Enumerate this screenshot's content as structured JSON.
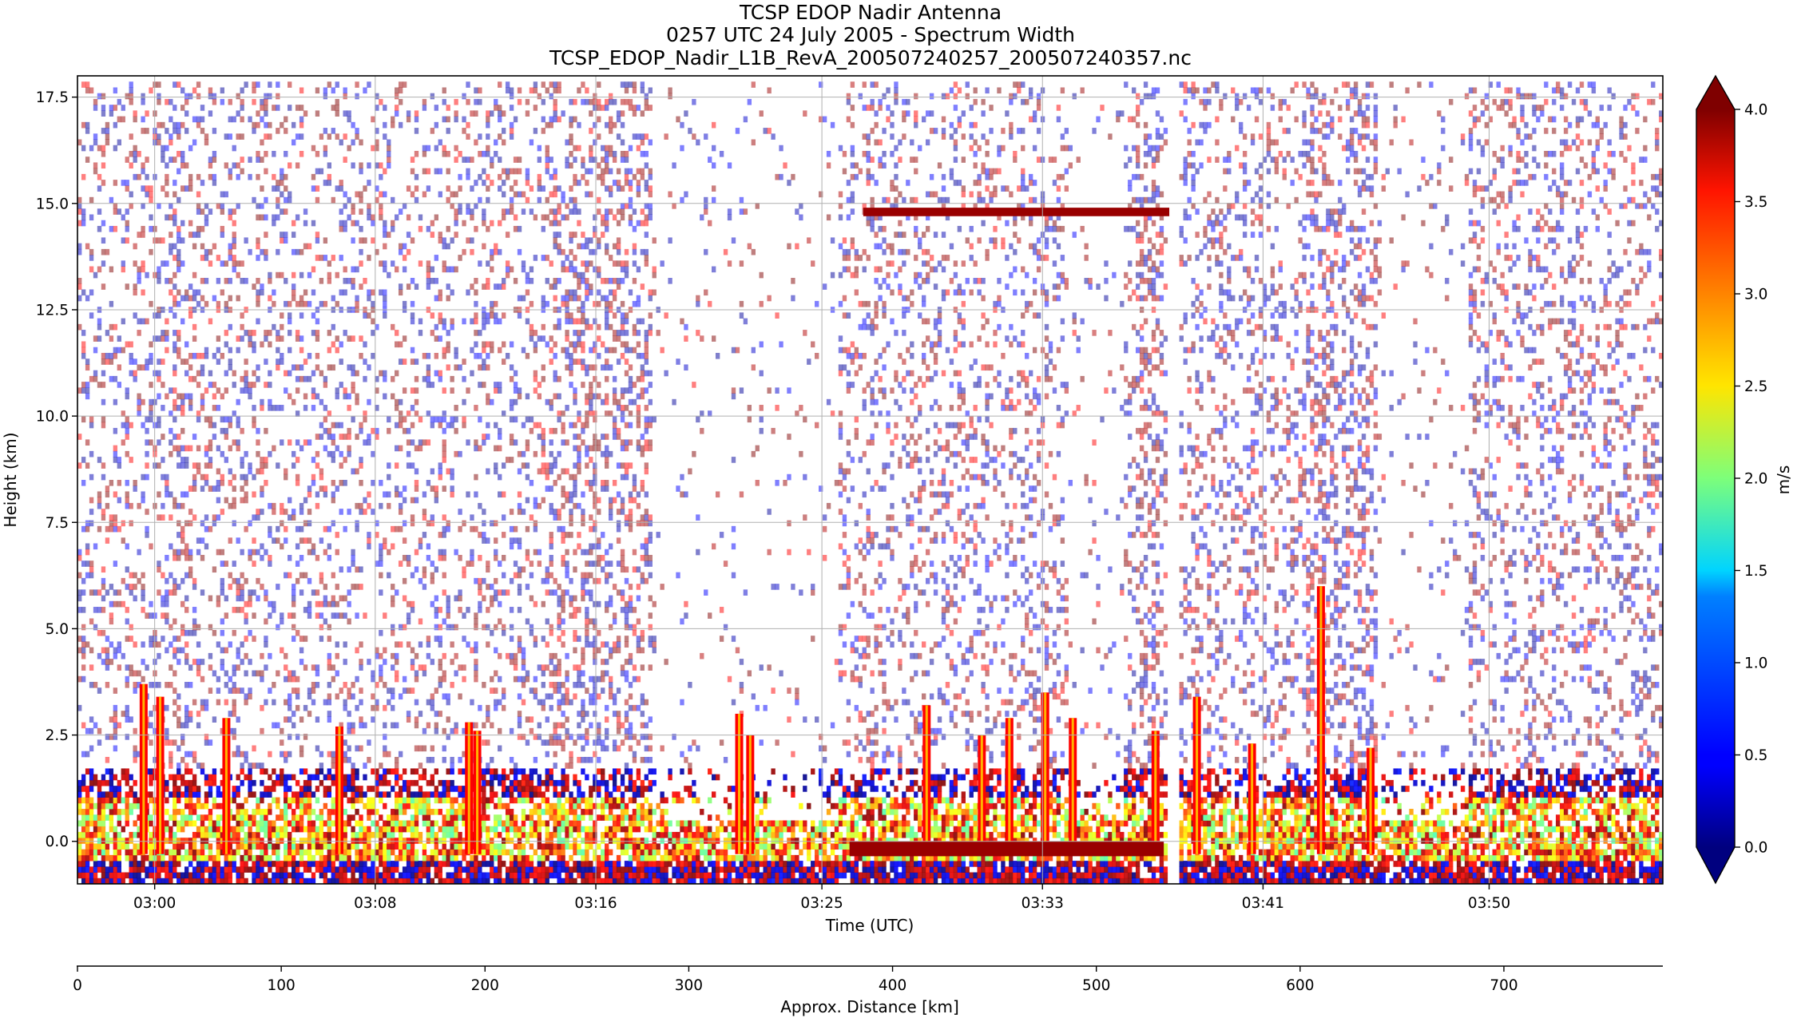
{
  "chart_data": {
    "type": "heatmap",
    "title_lines": [
      "TCSP EDOP Nadir Antenna",
      "0257 UTC 24 July 2005 - Spectrum Width",
      "TCSP_EDOP_Nadir_L1B_RevA_200507240257_200507240357.nc"
    ],
    "xlabel": "Time (UTC)",
    "ylabel": "Height (km)",
    "x2label": "Approx. Distance [km]",
    "colorbar_label": "m/s",
    "time_ticks": [
      "03:00",
      "03:08",
      "03:16",
      "03:25",
      "03:33",
      "03:41",
      "03:50"
    ],
    "time_tick_minutes": [
      182.8,
      190.8,
      198.8,
      207.0,
      215.0,
      223.0,
      231.2
    ],
    "time_range_minutes": [
      180.0,
      237.5
    ],
    "y_ticks": [
      0.0,
      2.5,
      5.0,
      7.5,
      10.0,
      12.5,
      15.0,
      17.5
    ],
    "y_tick_labels": [
      "0.0",
      "2.5",
      "5.0",
      "7.5",
      "10.0",
      "12.5",
      "15.0",
      "17.5"
    ],
    "ylim": [
      -1.0,
      18.0
    ],
    "distance_ticks": [
      0,
      100,
      200,
      300,
      400,
      500,
      600,
      700
    ],
    "distance_range": [
      0,
      778
    ],
    "colorbar_ticks": [
      0.0,
      0.5,
      1.0,
      1.5,
      2.0,
      2.5,
      3.0,
      3.5,
      4.0
    ],
    "colorbar_tick_labels": [
      "0.0",
      "0.5",
      "1.0",
      "1.5",
      "2.0",
      "2.5",
      "3.0",
      "3.5",
      "4.0"
    ],
    "colorbar_range": [
      0.0,
      4.0
    ],
    "colormap": "jet",
    "grid": true,
    "features": {
      "noise_floor_top_km": 17.9,
      "boundary_layer_top_km": 1.7,
      "data_gap_minutes": [
        219.6,
        219.9
      ],
      "sparse_segments_minutes": [
        [
          200.8,
          207.6
        ],
        [
          216.0,
          218.0
        ],
        [
          227.2,
          230.4
        ]
      ],
      "dense_columns_minutes": [
        [
          183.4,
          183.9
        ],
        [
          197.1,
          200.8
        ],
        [
          206.5,
          207.6
        ],
        [
          218.5,
          219.4
        ],
        [
          224.5,
          228.2
        ],
        [
          227.9,
          230.8
        ]
      ],
      "high_echo_band": {
        "t_start_minutes": 208.5,
        "t_end_minutes": 219.6,
        "height_km": 14.8,
        "value_ms": 3.9
      },
      "surface_band": {
        "t_start_minutes": 208.0,
        "t_end_minutes": 219.4,
        "height_km": -0.1,
        "value_ms": 3.9
      },
      "convective_columns": [
        {
          "t": 182.4,
          "top_km": 3.7
        },
        {
          "t": 183.0,
          "top_km": 3.4
        },
        {
          "t": 185.4,
          "top_km": 2.9
        },
        {
          "t": 189.5,
          "top_km": 2.7
        },
        {
          "t": 194.2,
          "top_km": 2.8
        },
        {
          "t": 194.5,
          "top_km": 2.6
        },
        {
          "t": 204.0,
          "top_km": 3.0
        },
        {
          "t": 204.4,
          "top_km": 2.5
        },
        {
          "t": 210.8,
          "top_km": 3.2
        },
        {
          "t": 212.8,
          "top_km": 2.5
        },
        {
          "t": 213.8,
          "top_km": 2.9
        },
        {
          "t": 215.1,
          "top_km": 3.5
        },
        {
          "t": 216.1,
          "top_km": 2.9
        },
        {
          "t": 219.1,
          "top_km": 2.6
        },
        {
          "t": 220.6,
          "top_km": 3.4
        },
        {
          "t": 222.6,
          "top_km": 2.3
        },
        {
          "t": 225.1,
          "top_km": 6.0
        },
        {
          "t": 226.9,
          "top_km": 2.2
        }
      ]
    }
  }
}
